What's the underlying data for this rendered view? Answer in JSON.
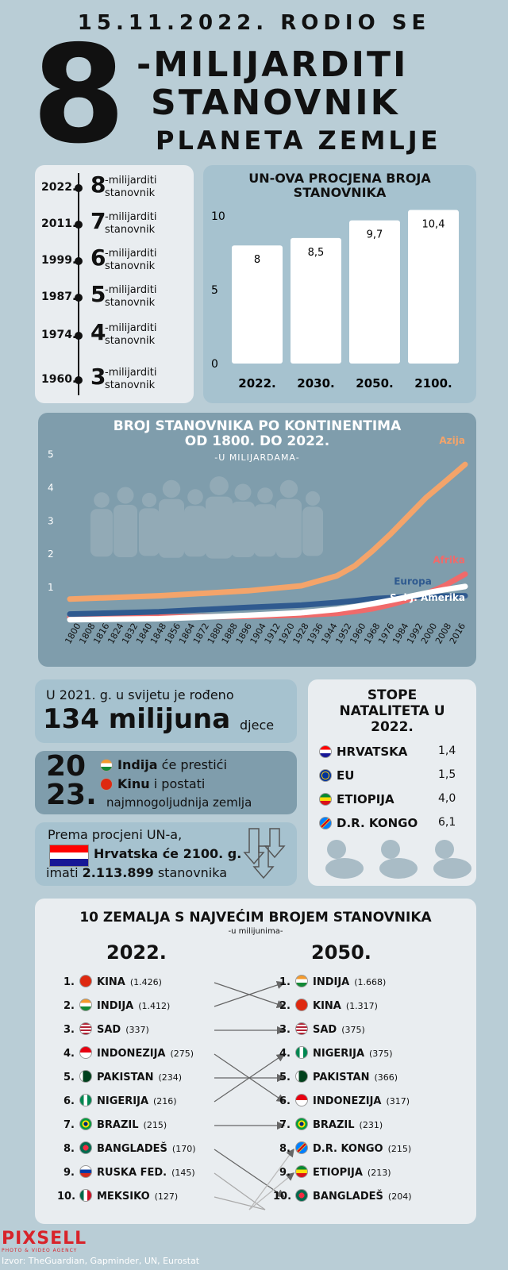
{
  "header": {
    "line1": "15.11.2022. RODIO SE",
    "big_number": "8",
    "line2": "-MILIJARDITI",
    "line3": "STANOVNIK",
    "line4": "PLANETA ZEMLJE"
  },
  "timeline": [
    {
      "year": "2022.",
      "num": "8",
      "text1": "-milijarditi",
      "text2": "stanovnik"
    },
    {
      "year": "2011.",
      "num": "7",
      "text1": "-milijarditi",
      "text2": "stanovnik"
    },
    {
      "year": "1999.",
      "num": "6",
      "text1": "-milijarditi",
      "text2": "stanovnik"
    },
    {
      "year": "1987.",
      "num": "5",
      "text1": "-milijarditi",
      "text2": "stanovnik"
    },
    {
      "year": "1974.",
      "num": "4",
      "text1": "-milijarditi",
      "text2": "stanovnik"
    },
    {
      "year": "1960.",
      "num": "3",
      "text1": "-milijarditi",
      "text2": "stanovnik"
    }
  ],
  "chart_data": [
    {
      "type": "bar",
      "title": "UN-OVA PROCJENA BROJA STANOVNIKA",
      "categories": [
        "2022.",
        "2030.",
        "2050.",
        "2100."
      ],
      "values": [
        8,
        8.5,
        9.7,
        10.4
      ],
      "value_labels": [
        "8",
        "8,5",
        "9,7",
        "10,4"
      ],
      "yticks": [
        "0",
        "5",
        "10"
      ],
      "ylim": [
        0,
        11
      ]
    },
    {
      "type": "line",
      "title": "BROJ STANOVNIKA PO KONTINENTIMA OD 1800. DO 2022.",
      "subtitle": "-U MILIJARDAMA-",
      "x_labels": [
        "1800",
        "1808",
        "1816",
        "1824",
        "1832",
        "1840",
        "1848",
        "1856",
        "1864",
        "1872",
        "1880",
        "1888",
        "1896",
        "1904",
        "1912",
        "1920",
        "1928",
        "1936",
        "1944",
        "1952",
        "1960",
        "1968",
        "1976",
        "1984",
        "1992",
        "2000",
        "2008",
        "2016"
      ],
      "yticks": [
        "1",
        "2",
        "3",
        "4",
        "5"
      ],
      "ylim": [
        0,
        5.3
      ],
      "x": [
        1800,
        1850,
        1900,
        1930,
        1950,
        1960,
        1970,
        1980,
        1990,
        2000,
        2010,
        2022
      ],
      "series": [
        {
          "name": "Azija",
          "color": "#f4a46a",
          "values": [
            0.65,
            0.75,
            0.9,
            1.05,
            1.35,
            1.65,
            2.1,
            2.6,
            3.15,
            3.7,
            4.15,
            4.7
          ]
        },
        {
          "name": "Afrika",
          "color": "#f06a6a",
          "values": [
            0.1,
            0.11,
            0.13,
            0.17,
            0.22,
            0.28,
            0.36,
            0.48,
            0.63,
            0.81,
            1.04,
            1.4
          ]
        },
        {
          "name": "Europa",
          "color": "#2f5a8f",
          "values": [
            0.2,
            0.27,
            0.4,
            0.47,
            0.55,
            0.6,
            0.66,
            0.69,
            0.72,
            0.73,
            0.74,
            0.75
          ]
        },
        {
          "name": "S. i J. Amerika",
          "color": "#ffffff",
          "values": [
            0.03,
            0.06,
            0.16,
            0.24,
            0.34,
            0.42,
            0.51,
            0.61,
            0.72,
            0.83,
            0.93,
            1.03
          ]
        }
      ]
    }
  ],
  "births": {
    "line1": "U 2021. g. u svijetu je rođeno",
    "big": "134 milijuna",
    "unit": "djece"
  },
  "india": {
    "year_top": "20",
    "year_bottom": "23.",
    "india": "Indija",
    "text1": "će prestići",
    "china": "Kinu",
    "text2": "i postati",
    "text3": "najmnogoljudnija zemlja"
  },
  "croatia": {
    "line1": "Prema procjeni UN-a,",
    "line2": "Hrvatska će 2100. g.",
    "pre": "imati",
    "number": "2.113.899",
    "post": "stanovnika"
  },
  "natality": {
    "title1": "STOPE",
    "title2": "NATALITETA U",
    "title3": "2022.",
    "rows": [
      {
        "country": "HRVATSKA",
        "value": "1,4",
        "flag": "hr"
      },
      {
        "country": "EU",
        "value": "1,5",
        "flag": "eu"
      },
      {
        "country": "ETIOPIJA",
        "value": "4,0",
        "flag": "et"
      },
      {
        "country": "D.R. KONGO",
        "value": "6,1",
        "flag": "cd"
      }
    ]
  },
  "ranking": {
    "title": "10 ZEMALJA S NAJVEĆIM BROJEM STANOVNIKA",
    "subtitle": "-u milijunima-",
    "year_left": "2022.",
    "year_right": "2050.",
    "left": [
      {
        "rank": "1.",
        "name": "KINA",
        "value": "(1.426)",
        "flag": "cn"
      },
      {
        "rank": "2.",
        "name": "INDIJA",
        "value": "(1.412)",
        "flag": "in"
      },
      {
        "rank": "3.",
        "name": "SAD",
        "value": "(337)",
        "flag": "us"
      },
      {
        "rank": "4.",
        "name": "INDONEZIJA",
        "value": "(275)",
        "flag": "id"
      },
      {
        "rank": "5.",
        "name": "PAKISTAN",
        "value": "(234)",
        "flag": "pk"
      },
      {
        "rank": "6.",
        "name": "NIGERIJA",
        "value": "(216)",
        "flag": "ng"
      },
      {
        "rank": "7.",
        "name": "BRAZIL",
        "value": "(215)",
        "flag": "br"
      },
      {
        "rank": "8.",
        "name": "BANGLADEŠ",
        "value": "(170)",
        "flag": "bd"
      },
      {
        "rank": "9.",
        "name": "RUSKA FED.",
        "value": "(145)",
        "flag": "ru"
      },
      {
        "rank": "10.",
        "name": "MEKSIKO",
        "value": "(127)",
        "flag": "mx"
      }
    ],
    "right": [
      {
        "rank": "1.",
        "name": "INDIJA",
        "value": "(1.668)",
        "flag": "in"
      },
      {
        "rank": "2.",
        "name": "KINA",
        "value": "(1.317)",
        "flag": "cn"
      },
      {
        "rank": "3.",
        "name": "SAD",
        "value": "(375)",
        "flag": "us"
      },
      {
        "rank": "4.",
        "name": "NIGERIJA",
        "value": "(375)",
        "flag": "ng"
      },
      {
        "rank": "5.",
        "name": "PAKISTAN",
        "value": "(366)",
        "flag": "pk"
      },
      {
        "rank": "6.",
        "name": "INDONEZIJA",
        "value": "(317)",
        "flag": "id"
      },
      {
        "rank": "7.",
        "name": "BRAZIL",
        "value": "(231)",
        "flag": "br"
      },
      {
        "rank": "8.",
        "name": "D.R. KONGO",
        "value": "(215)",
        "flag": "cd"
      },
      {
        "rank": "9.",
        "name": "ETIOPIJA",
        "value": "(213)",
        "flag": "et"
      },
      {
        "rank": "10.",
        "name": "BANGLADEŠ",
        "value": "(204)",
        "flag": "bd"
      }
    ]
  },
  "footer": {
    "logo": "PIXSELL",
    "logo_sub": "PHOTO & VIDEO AGENCY",
    "source": "Izvor: TheGuardian, Gapminder, UN, Eurostat"
  }
}
